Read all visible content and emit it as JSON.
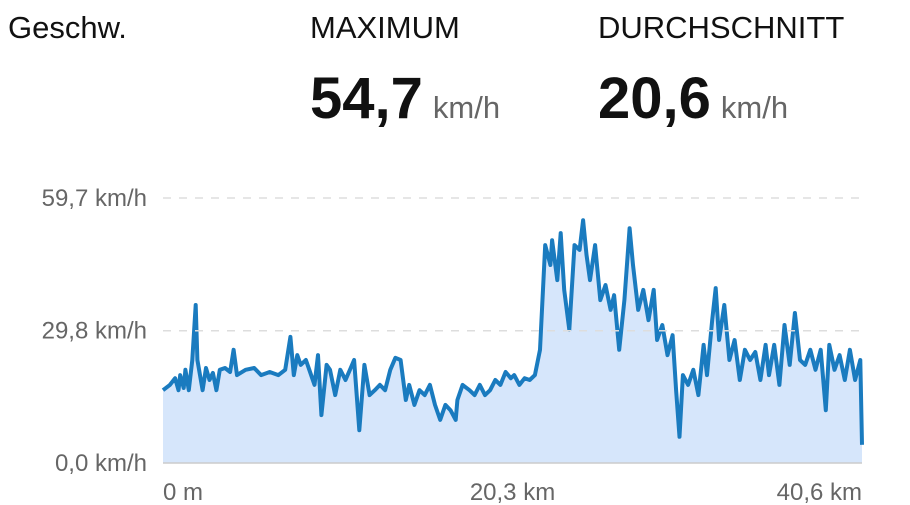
{
  "chart_data": {
    "type": "line",
    "title": "Geschw.",
    "stats": [
      {
        "label": "MAXIMUM",
        "value": "54,7",
        "unit": "km/h"
      },
      {
        "label": "DURCHSCHNITT",
        "value": "20,6",
        "unit": "km/h"
      }
    ],
    "x": [
      0,
      0.4,
      0.7,
      0.9,
      1.0,
      1.2,
      1.3,
      1.5,
      1.7,
      1.9,
      2.0,
      2.3,
      2.5,
      2.7,
      2.9,
      3.1,
      3.3,
      3.6,
      3.9,
      4.1,
      4.3,
      4.8,
      5.3,
      5.7,
      6.2,
      6.7,
      7.1,
      7.4,
      7.6,
      7.8,
      8.0,
      8.3,
      8.5,
      8.8,
      9.0,
      9.2,
      9.5,
      9.7,
      10.0,
      10.3,
      10.6,
      10.9,
      11.1,
      11.4,
      11.7,
      12.0,
      12.3,
      12.6,
      12.9,
      13.2,
      13.5,
      13.8,
      14.1,
      14.3,
      14.6,
      14.9,
      15.2,
      15.5,
      15.8,
      16.1,
      16.4,
      16.7,
      17.0,
      17.1,
      17.4,
      17.8,
      18.1,
      18.4,
      18.7,
      19.0,
      19.3,
      19.6,
      19.9,
      20.2,
      20.4,
      20.7,
      21.0,
      21.3,
      21.6,
      21.9,
      22.2,
      22.5,
      22.6,
      22.9,
      23.1,
      23.3,
      23.6,
      23.9,
      24.2,
      24.4,
      24.6,
      24.8,
      25.1,
      25.4,
      25.7,
      26.0,
      26.2,
      26.5,
      26.8,
      27.1,
      27.3,
      27.6,
      27.9,
      28.2,
      28.5,
      28.7,
      29.0,
      29.3,
      29.6,
      29.8,
      30.0,
      30.2,
      30.5,
      30.8,
      31.1,
      31.4,
      31.6,
      31.9,
      32.1,
      32.3,
      32.6,
      32.9,
      33.2,
      33.5,
      33.8,
      34.1,
      34.4,
      34.7,
      35.0,
      35.2,
      35.5,
      35.8,
      36.1,
      36.4,
      36.7,
      37.0,
      37.3,
      37.6,
      37.9,
      38.2,
      38.5,
      38.7,
      39.0,
      39.3,
      39.6,
      39.9,
      40.2,
      40.5,
      40.6
    ],
    "series": [
      {
        "color": "#1a7bbf",
        "fill": "#d6e6fb",
        "values": [
          16.4,
          17.6,
          19.1,
          16.4,
          19.8,
          16.9,
          21.0,
          16.4,
          23.2,
          35.6,
          23.2,
          16.4,
          21.4,
          18.7,
          20.3,
          16.4,
          21.0,
          21.4,
          20.5,
          25.5,
          19.8,
          21.0,
          21.4,
          19.8,
          20.5,
          19.8,
          21.0,
          28.4,
          19.8,
          24.3,
          22.1,
          23.2,
          21.0,
          17.6,
          24.3,
          10.8,
          22.1,
          21.0,
          15.3,
          21.0,
          18.7,
          21.4,
          23.2,
          7.4,
          22.1,
          15.3,
          16.4,
          17.6,
          16.4,
          21.0,
          23.7,
          23.2,
          14.2,
          17.6,
          13.1,
          16.4,
          15.3,
          17.6,
          13.1,
          9.7,
          13.1,
          11.9,
          9.7,
          14.2,
          17.6,
          16.4,
          15.3,
          17.6,
          15.3,
          16.4,
          18.7,
          17.6,
          20.5,
          19.1,
          19.8,
          17.6,
          19.1,
          18.7,
          19.8,
          25.5,
          49.1,
          44.6,
          50.2,
          41.2,
          51.8,
          39.0,
          30.0,
          49.1,
          48.0,
          54.7,
          46.9,
          41.2,
          49.1,
          36.7,
          40.1,
          34.5,
          37.8,
          25.5,
          36.7,
          52.9,
          44.6,
          34.5,
          39.0,
          32.2,
          39.0,
          27.7,
          31.1,
          24.3,
          28.8,
          16.4,
          5.9,
          19.8,
          17.6,
          21.0,
          15.3,
          26.6,
          19.8,
          32.2,
          39.4,
          27.7,
          35.6,
          23.2,
          27.7,
          18.7,
          25.5,
          23.2,
          25.0,
          18.7,
          26.6,
          19.8,
          26.6,
          17.6,
          31.1,
          22.1,
          33.8,
          23.2,
          22.1,
          25.5,
          21.0,
          25.5,
          11.9,
          26.6,
          21.0,
          24.3,
          18.7,
          25.5,
          18.7,
          23.2,
          4.1
        ]
      }
    ],
    "xlim": [
      0,
      40.6
    ],
    "ylim": [
      0,
      59.7
    ],
    "xticks": [
      {
        "value": 0,
        "label": "0 m"
      },
      {
        "value": 20.3,
        "label": "20,3 km"
      },
      {
        "value": 40.6,
        "label": "40,6 km"
      }
    ],
    "yticks": [
      {
        "value": 59.7,
        "label": "59,7 km/h"
      },
      {
        "value": 29.8,
        "label": "29,8 km/h"
      },
      {
        "value": 0,
        "label": "0,0 km/h"
      }
    ],
    "grid": true
  }
}
